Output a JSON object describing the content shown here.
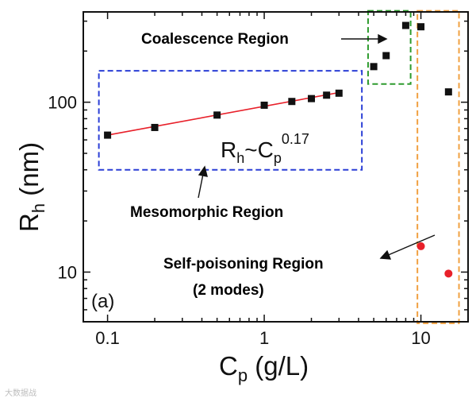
{
  "chart_data": {
    "type": "scatter",
    "panel_label": "(a)",
    "x_scale": "log",
    "y_scale": "log",
    "xlim": [
      0.07,
      20
    ],
    "ylim": [
      5.1,
      340
    ],
    "xlabel": {
      "main": "C",
      "sub": "p",
      "rest": " (g/L)"
    },
    "ylabel": {
      "main": "R",
      "sub": "h",
      "rest": " (nm)"
    },
    "x_ticks": [
      {
        "value": 0.1,
        "label": "0.1"
      },
      {
        "value": 1,
        "label": "1"
      },
      {
        "value": 10,
        "label": "10"
      }
    ],
    "y_ticks": [
      {
        "value": 10,
        "label": "10"
      },
      {
        "value": 100,
        "label": "100"
      }
    ],
    "series": [
      {
        "name": "Mesomorphic",
        "marker": "square",
        "color": "#111111",
        "points": [
          {
            "x": 0.1,
            "y": 64
          },
          {
            "x": 0.2,
            "y": 71
          },
          {
            "x": 0.5,
            "y": 84
          },
          {
            "x": 1.0,
            "y": 96
          },
          {
            "x": 1.5,
            "y": 101
          },
          {
            "x": 2.0,
            "y": 105
          },
          {
            "x": 2.5,
            "y": 110
          },
          {
            "x": 3.0,
            "y": 113
          }
        ]
      },
      {
        "name": "Coalescence",
        "marker": "square",
        "color": "#111111",
        "points": [
          {
            "x": 5.0,
            "y": 162
          },
          {
            "x": 6.0,
            "y": 188
          },
          {
            "x": 8.0,
            "y": 283
          },
          {
            "x": 10.0,
            "y": 278
          },
          {
            "x": 15.0,
            "y": 115
          }
        ]
      },
      {
        "name": "Self-poisoning (2 modes)",
        "marker": "circle",
        "color": "#e8202a",
        "points": [
          {
            "x": 10.0,
            "y": 14.2
          },
          {
            "x": 15.0,
            "y": 9.8
          }
        ]
      }
    ],
    "fit_line": {
      "x": [
        0.1,
        3.0
      ],
      "y": [
        64,
        114
      ],
      "exponent": 0.17,
      "color": "#e8202a"
    },
    "equation": {
      "r": "R",
      "r_sub": "h",
      "tilde": "~",
      "c": "C",
      "c_sub": "p",
      "exp": "0.17"
    },
    "annotations": [
      {
        "id": "coalescence",
        "text": "Coalescence Region",
        "color": "#2e9b2e"
      },
      {
        "id": "mesomorphic",
        "text": "Mesomorphic Region",
        "color": "#2b3fd6"
      },
      {
        "id": "selfpoison1",
        "text": "Self-poisoning Region",
        "color": "#e8202a"
      },
      {
        "id": "selfpoison2",
        "text": "(2 modes)",
        "color": "#e8202a"
      }
    ],
    "region_boxes": [
      {
        "name": "mesomorphic-box",
        "color": "#2b3fd6",
        "x": [
          0.088,
          4.2
        ],
        "y": [
          40,
          153
        ]
      },
      {
        "name": "coalescence-box",
        "color": "#2e9b2e",
        "x": [
          4.6,
          8.6
        ],
        "y": [
          128,
          345
        ]
      },
      {
        "name": "self-poisoning-box",
        "color": "#f0a040",
        "x": [
          9.5,
          17.5
        ],
        "y": [
          5.0,
          345
        ]
      }
    ]
  },
  "watermark": "大数据战"
}
